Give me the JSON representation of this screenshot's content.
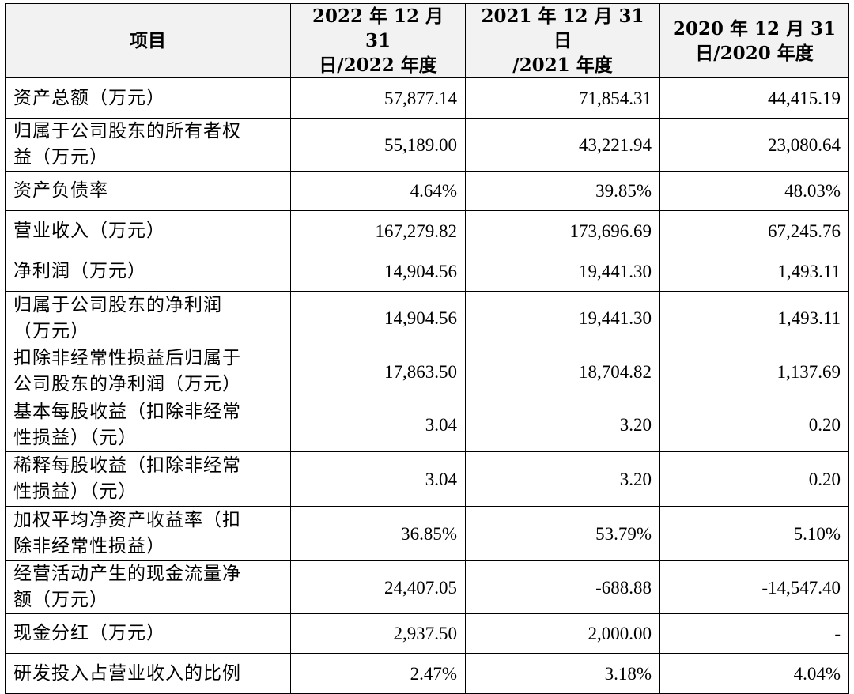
{
  "table": {
    "headers": [
      [
        "项目"
      ],
      [
        "2022 年 12 月 31",
        "日/2022 年度"
      ],
      [
        "2021 年 12 月 31 日",
        "/2021 年度"
      ],
      [
        "2020 年 12 月 31",
        "日/2020 年度"
      ]
    ],
    "rows": [
      {
        "label": [
          "资产总额（万元）"
        ],
        "values": [
          "57,877.14",
          "71,854.31",
          "44,415.19"
        ]
      },
      {
        "label": [
          "归属于公司股东的所有者权",
          "益（万元）"
        ],
        "values": [
          "55,189.00",
          "43,221.94",
          "23,080.64"
        ]
      },
      {
        "label": [
          "资产负债率"
        ],
        "values": [
          "4.64%",
          "39.85%",
          "48.03%"
        ]
      },
      {
        "label": [
          "营业收入（万元）"
        ],
        "values": [
          "167,279.82",
          "173,696.69",
          "67,245.76"
        ]
      },
      {
        "label": [
          "净利润（万元）"
        ],
        "values": [
          "14,904.56",
          "19,441.30",
          "1,493.11"
        ]
      },
      {
        "label": [
          "归属于公司股东的净利润",
          "（万元）"
        ],
        "values": [
          "14,904.56",
          "19,441.30",
          "1,493.11"
        ]
      },
      {
        "label": [
          "扣除非经常性损益后归属于",
          "公司股东的净利润（万元）"
        ],
        "values": [
          "17,863.50",
          "18,704.82",
          "1,137.69"
        ]
      },
      {
        "label": [
          "基本每股收益（扣除非经常",
          "性损益）（元）"
        ],
        "values": [
          "3.04",
          "3.20",
          "0.20"
        ]
      },
      {
        "label": [
          "稀释每股收益（扣除非经常",
          "性损益）（元）"
        ],
        "values": [
          "3.04",
          "3.20",
          "0.20"
        ]
      },
      {
        "label": [
          "加权平均净资产收益率（扣",
          "除非经常性损益）"
        ],
        "values": [
          "36.85%",
          "53.79%",
          "5.10%"
        ]
      },
      {
        "label": [
          "经营活动产生的现金流量净",
          "额（万元）"
        ],
        "values": [
          "24,407.05",
          "-688.88",
          "-14,547.40"
        ]
      },
      {
        "label": [
          "现金分红（万元）"
        ],
        "values": [
          "2,937.50",
          "2,000.00",
          "-"
        ]
      },
      {
        "label": [
          "研发投入占营业收入的比例"
        ],
        "values": [
          "2.47%",
          "3.18%",
          "4.04%"
        ]
      }
    ]
  }
}
